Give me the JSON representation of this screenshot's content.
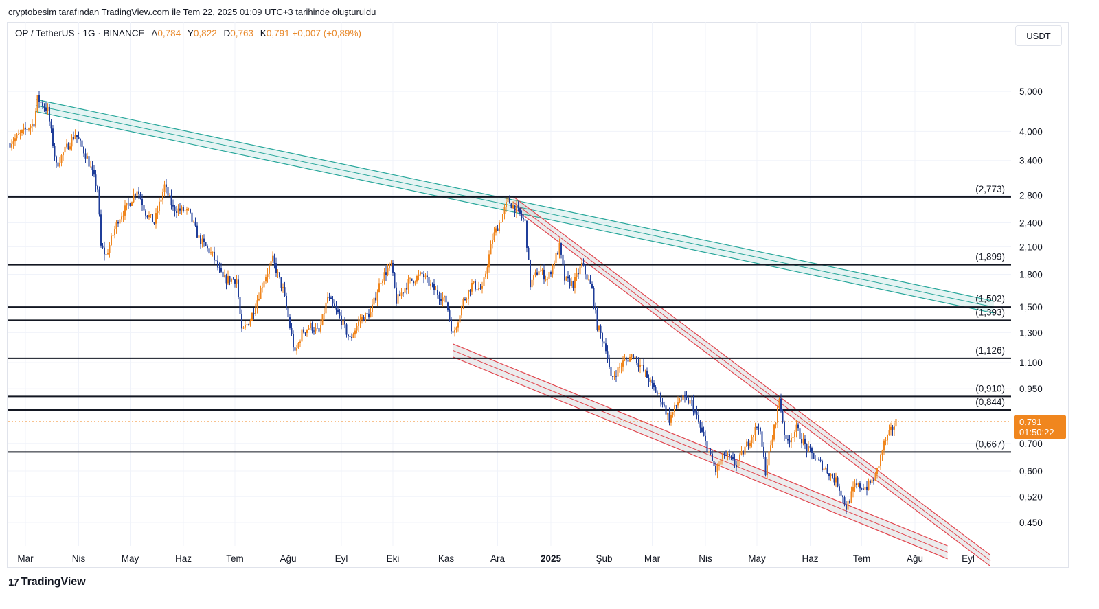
{
  "attribution": "cryptobesim tarafından TradingView.com ile Tem 22, 2025 01:09 UTC+3 tarihinde oluşturuldu",
  "legend": {
    "symbol": "OP / TetherUS · 1G · BINANCE",
    "open_label": "A",
    "open": "0,784",
    "high_label": "Y",
    "high": "0,822",
    "low_label": "D",
    "low": "0,763",
    "close_label": "K",
    "close": "0,791",
    "change": "+0,007 (+0,89%)"
  },
  "currency_button": "USDT",
  "price_label": {
    "price": "0,791",
    "countdown": "01:50:22"
  },
  "brand": {
    "logo_glyph": "17",
    "name": "TradingView"
  },
  "colors": {
    "up": "#f0861e",
    "down": "#1f3d99",
    "teal": "#26a69a",
    "red": "#e2454d",
    "level": "#131722",
    "price_line": "#f0861e"
  },
  "chart_data": {
    "type": "candlestick",
    "title": "OP / TetherUS · 1G · BINANCE",
    "x_range": [
      "2024-02-20",
      "2025-09-26"
    ],
    "y_scale": "log",
    "ylim": [
      0.395,
      5.9
    ],
    "grid": true,
    "x_ticks": [
      {
        "date": "2024-03-01",
        "label": "Mar"
      },
      {
        "date": "2024-04-01",
        "label": "Nis"
      },
      {
        "date": "2024-05-01",
        "label": "May"
      },
      {
        "date": "2024-06-01",
        "label": "Haz"
      },
      {
        "date": "2024-07-01",
        "label": "Tem"
      },
      {
        "date": "2024-08-01",
        "label": "Ağu"
      },
      {
        "date": "2024-09-01",
        "label": "Eyl"
      },
      {
        "date": "2024-10-01",
        "label": "Eki"
      },
      {
        "date": "2024-11-01",
        "label": "Kas"
      },
      {
        "date": "2024-12-01",
        "label": "Ara"
      },
      {
        "date": "2025-01-01",
        "label": "2025",
        "bold": true
      },
      {
        "date": "2025-02-01",
        "label": "Şub"
      },
      {
        "date": "2025-03-01",
        "label": "Mar"
      },
      {
        "date": "2025-04-01",
        "label": "Nis"
      },
      {
        "date": "2025-05-01",
        "label": "May"
      },
      {
        "date": "2025-06-01",
        "label": "Haz"
      },
      {
        "date": "2025-07-01",
        "label": "Tem"
      },
      {
        "date": "2025-08-01",
        "label": "Ağu"
      },
      {
        "date": "2025-09-01",
        "label": "Eyl"
      }
    ],
    "y_ticks": [
      {
        "value": 5.0,
        "label": "5,000"
      },
      {
        "value": 4.0,
        "label": "4,000"
      },
      {
        "value": 3.4,
        "label": "3,400"
      },
      {
        "value": 2.8,
        "label": "2,800"
      },
      {
        "value": 2.4,
        "label": "2,400"
      },
      {
        "value": 2.1,
        "label": "2,100"
      },
      {
        "value": 1.8,
        "label": "1,800"
      },
      {
        "value": 1.5,
        "label": "1,500"
      },
      {
        "value": 1.3,
        "label": "1,300"
      },
      {
        "value": 1.1,
        "label": "1,100"
      },
      {
        "value": 0.95,
        "label": "0,950"
      },
      {
        "value": 0.7,
        "label": "0,700"
      },
      {
        "value": 0.6,
        "label": "0,600"
      },
      {
        "value": 0.52,
        "label": "0,520"
      },
      {
        "value": 0.45,
        "label": "0,450"
      }
    ],
    "horizontal_levels": [
      {
        "value": 2.773,
        "label": "(2,773)"
      },
      {
        "value": 1.899,
        "label": "(1,899)"
      },
      {
        "value": 1.502,
        "label": "(1,502)",
        "line": false
      },
      {
        "value": 1.5,
        "label": "",
        "line": true
      },
      {
        "value": 1.393,
        "label": "(1,393)"
      },
      {
        "value": 1.126,
        "label": "(1,126)"
      },
      {
        "value": 0.91,
        "label": "(0,910)"
      },
      {
        "value": 0.844,
        "label": "(0,844)"
      },
      {
        "value": 0.667,
        "label": "(0,667)"
      }
    ],
    "current_price": 0.791,
    "channels": [
      {
        "name": "descending-resistance-teal",
        "color": "teal",
        "start": {
          "date": "2024-03-07",
          "value": 4.78
        },
        "end": {
          "date": "2025-09-16",
          "value": 1.55
        },
        "band_low_ratio": 0.935
      },
      {
        "name": "descending-resistance-red",
        "color": "red",
        "start": {
          "date": "2024-12-10",
          "value": 2.78
        },
        "end": {
          "date": "2025-09-14",
          "value": 0.375
        },
        "band_low_ratio": 0.94
      },
      {
        "name": "descending-support-red",
        "color": "red",
        "start": {
          "date": "2024-11-05",
          "value": 1.22
        },
        "end": {
          "date": "2025-08-20",
          "value": 0.395
        },
        "band_low_ratio": 0.93
      }
    ],
    "waypoints": [
      [
        "2024-02-21",
        3.75
      ],
      [
        "2024-03-06",
        4.2
      ],
      [
        "2024-03-08",
        4.8
      ],
      [
        "2024-03-14",
        4.5
      ],
      [
        "2024-03-19",
        3.3
      ],
      [
        "2024-03-24",
        3.6
      ],
      [
        "2024-03-30",
        3.95
      ],
      [
        "2024-04-06",
        3.45
      ],
      [
        "2024-04-12",
        2.9
      ],
      [
        "2024-04-14",
        2.1
      ],
      [
        "2024-04-17",
        2.0
      ],
      [
        "2024-04-24",
        2.45
      ],
      [
        "2024-05-01",
        2.7
      ],
      [
        "2024-05-05",
        2.9
      ],
      [
        "2024-05-10",
        2.55
      ],
      [
        "2024-05-15",
        2.4
      ],
      [
        "2024-05-21",
        2.95
      ],
      [
        "2024-05-26",
        2.6
      ],
      [
        "2024-06-04",
        2.55
      ],
      [
        "2024-06-10",
        2.2
      ],
      [
        "2024-06-18",
        2.0
      ],
      [
        "2024-06-24",
        1.75
      ],
      [
        "2024-07-02",
        1.75
      ],
      [
        "2024-07-05",
        1.3
      ],
      [
        "2024-07-10",
        1.4
      ],
      [
        "2024-07-18",
        1.75
      ],
      [
        "2024-07-23",
        1.95
      ],
      [
        "2024-07-29",
        1.65
      ],
      [
        "2024-08-05",
        1.15
      ],
      [
        "2024-08-09",
        1.3
      ],
      [
        "2024-08-14",
        1.35
      ],
      [
        "2024-08-19",
        1.3
      ],
      [
        "2024-08-24",
        1.58
      ],
      [
        "2024-08-31",
        1.42
      ],
      [
        "2024-09-06",
        1.25
      ],
      [
        "2024-09-12",
        1.4
      ],
      [
        "2024-09-18",
        1.45
      ],
      [
        "2024-09-24",
        1.75
      ],
      [
        "2024-09-30",
        1.9
      ],
      [
        "2024-10-03",
        1.55
      ],
      [
        "2024-10-10",
        1.72
      ],
      [
        "2024-10-18",
        1.8
      ],
      [
        "2024-10-25",
        1.65
      ],
      [
        "2024-11-01",
        1.55
      ],
      [
        "2024-11-05",
        1.28
      ],
      [
        "2024-11-11",
        1.55
      ],
      [
        "2024-11-16",
        1.7
      ],
      [
        "2024-11-22",
        1.65
      ],
      [
        "2024-11-28",
        2.2
      ],
      [
        "2024-12-03",
        2.45
      ],
      [
        "2024-12-07",
        2.72
      ],
      [
        "2024-12-13",
        2.55
      ],
      [
        "2024-12-17",
        2.4
      ],
      [
        "2024-12-20",
        1.7
      ],
      [
        "2024-12-25",
        1.85
      ],
      [
        "2024-12-30",
        1.75
      ],
      [
        "2025-01-06",
        2.1
      ],
      [
        "2025-01-09",
        1.75
      ],
      [
        "2025-01-14",
        1.7
      ],
      [
        "2025-01-19",
        1.9
      ],
      [
        "2025-01-25",
        1.65
      ],
      [
        "2025-01-28",
        1.35
      ],
      [
        "2025-02-02",
        1.2
      ],
      [
        "2025-02-05",
        1.0
      ],
      [
        "2025-02-12",
        1.1
      ],
      [
        "2025-02-18",
        1.15
      ],
      [
        "2025-02-24",
        1.05
      ],
      [
        "2025-03-02",
        0.95
      ],
      [
        "2025-03-06",
        0.9
      ],
      [
        "2025-03-11",
        0.8
      ],
      [
        "2025-03-17",
        0.9
      ],
      [
        "2025-03-24",
        0.88
      ],
      [
        "2025-03-30",
        0.74
      ],
      [
        "2025-04-07",
        0.6
      ],
      [
        "2025-04-12",
        0.66
      ],
      [
        "2025-04-19",
        0.62
      ],
      [
        "2025-04-27",
        0.72
      ],
      [
        "2025-05-02",
        0.78
      ],
      [
        "2025-05-06",
        0.6
      ],
      [
        "2025-05-10",
        0.72
      ],
      [
        "2025-05-14",
        0.9
      ],
      [
        "2025-05-18",
        0.7
      ],
      [
        "2025-05-24",
        0.76
      ],
      [
        "2025-05-30",
        0.68
      ],
      [
        "2025-06-06",
        0.63
      ],
      [
        "2025-06-11",
        0.6
      ],
      [
        "2025-06-17",
        0.56
      ],
      [
        "2025-06-22",
        0.49
      ],
      [
        "2025-06-27",
        0.55
      ],
      [
        "2025-07-04",
        0.55
      ],
      [
        "2025-07-09",
        0.58
      ],
      [
        "2025-07-14",
        0.7
      ],
      [
        "2025-07-21",
        0.79
      ]
    ]
  }
}
